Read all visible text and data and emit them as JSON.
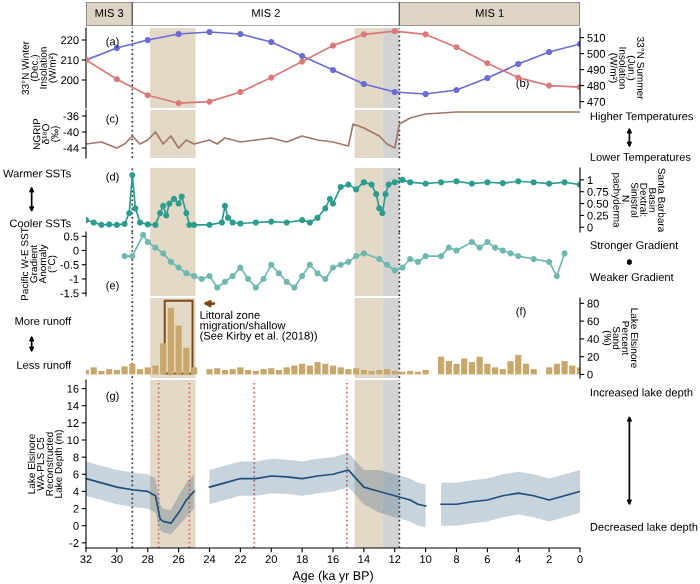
{
  "chart_data": [
    {
      "type": "other",
      "annotations": [
        "MIS 3",
        "MIS 2",
        "MIS 1"
      ],
      "colors": [
        "#ddd4c6",
        "#ffffff",
        "#ddd4c6"
      ]
    },
    {
      "type": "line",
      "ylabel": "33°N Winter\n(Dec.)\nInsolation\n(W/m²)",
      "y2label": "33°N Summer\n(Jun.)\nInsolation\n(W/m²)",
      "xlim": [
        32,
        0
      ],
      "ylim": [
        186,
        226
      ],
      "yticks": [
        200,
        210,
        220
      ],
      "y2lim": [
        466,
        516
      ],
      "y2ticks": [
        470,
        480,
        490,
        500,
        510
      ],
      "tick_labels": "y",
      "marker": "circle",
      "series": [
        {
          "color": "#6b6bd6",
          "x": [
            32,
            30,
            28,
            26,
            24,
            22,
            20,
            18,
            16,
            14,
            12,
            10,
            8,
            6,
            4,
            2,
            0
          ],
          "values": [
            210,
            216,
            220,
            223,
            224,
            223,
            219,
            212,
            205,
            198,
            194,
            193,
            195,
            201,
            208,
            214,
            218
          ]
        },
        {
          "color": "#d97a7a",
          "axis": "y2",
          "x": [
            32,
            30,
            28,
            26,
            24,
            22,
            20,
            18,
            16,
            14,
            12,
            10,
            8,
            6,
            4,
            2,
            0
          ],
          "values": [
            496,
            484,
            474,
            469,
            470,
            476,
            485,
            495,
            505,
            512,
            514,
            512,
            504,
            494,
            485,
            480,
            479
          ]
        }
      ],
      "annotations": [
        "(a)",
        "(b)"
      ],
      "bands": [
        {
          "axis": "x",
          "from": 27.85,
          "to": 24.9,
          "color": "#e3d9c6"
        },
        {
          "axis": "x",
          "from": 14.6,
          "to": 12.8,
          "color": "#e3d9c6"
        },
        {
          "axis": "x",
          "from": 12.8,
          "to": 11.7,
          "color": "#d3d3d3"
        }
      ],
      "ref_lines": [
        {
          "axis": "x",
          "value": 29,
          "color": "#333333",
          "line_style": "dotted"
        },
        {
          "axis": "x",
          "value": 11.7,
          "color": "#333333",
          "line_style": "dotted"
        }
      ]
    },
    {
      "type": "line",
      "ylabel": "NGRIP\nδ¹⁸O\n(‰)",
      "xlim": [
        32,
        0
      ],
      "ylim": [
        -46.5,
        -34.5
      ],
      "yticks": [
        -44,
        -40,
        -36
      ],
      "tick_labels": "y",
      "series": [
        {
          "color": "#a0786a",
          "x": [
            32,
            31,
            30,
            29.5,
            29,
            28.5,
            28,
            27.5,
            27,
            26.5,
            26,
            25.5,
            25,
            24,
            23.5,
            23,
            22,
            21,
            20,
            19,
            18,
            17,
            16,
            15,
            14.7,
            14,
            13.5,
            13,
            12.5,
            12,
            11.7,
            11,
            10,
            8,
            6,
            4,
            2,
            0
          ],
          "values": [
            -43,
            -42.5,
            -44,
            -43,
            -41,
            -43,
            -42,
            -40,
            -43,
            -41,
            -44,
            -42,
            -43,
            -42,
            -43,
            -41.5,
            -42.5,
            -42,
            -41.5,
            -42.5,
            -41,
            -42,
            -42.5,
            -43.5,
            -38,
            -39,
            -40,
            -41,
            -43,
            -44,
            -38,
            -36.5,
            -35.5,
            -35,
            -35,
            -35,
            -35,
            -35
          ]
        }
      ],
      "annotations": [
        "(c)",
        "Higher Temperatures",
        "Lower Temperatures"
      ],
      "bands": [
        {
          "axis": "x",
          "from": 27.85,
          "to": 24.9,
          "color": "#e3d9c6"
        },
        {
          "axis": "x",
          "from": 14.6,
          "to": 12.8,
          "color": "#e3d9c6"
        },
        {
          "axis": "x",
          "from": 12.8,
          "to": 11.7,
          "color": "#d3d3d3"
        }
      ],
      "ref_lines": [
        {
          "axis": "x",
          "value": 29,
          "color": "#333333",
          "line_style": "dotted"
        },
        {
          "axis": "x",
          "value": 11.7,
          "color": "#333333",
          "line_style": "dotted"
        }
      ]
    },
    {
      "type": "line",
      "y2label": "Santa Barbara\nBasin\nDextral:\nSinistral\nN.\npachyderma",
      "xlim": [
        32,
        0
      ],
      "y2lim": [
        -0.1,
        1.25
      ],
      "y2ticks": [
        0,
        0.25,
        {
          "value": 0.5,
          "label": "0.50"
        },
        0.75,
        1
      ],
      "tick_labels": "y",
      "marker": "circle",
      "series": [
        {
          "color": "#2a9d8f",
          "axis": "y2",
          "x": [
            32,
            31.5,
            31,
            30.5,
            30,
            29.5,
            29.2,
            29,
            28.8,
            28.5,
            28,
            27.5,
            27.2,
            27,
            26.8,
            26.6,
            26.3,
            26,
            25.8,
            25.5,
            25.3,
            25,
            24,
            23.2,
            23,
            22.8,
            22.5,
            22,
            21,
            20,
            19,
            18,
            17.5,
            17,
            16.5,
            16.2,
            16,
            15.5,
            15,
            14.5,
            14,
            13.5,
            13.2,
            13,
            12.8,
            12.6,
            12.4,
            12,
            11.5,
            11,
            10,
            9,
            8,
            7,
            6,
            5,
            4,
            3,
            2,
            1,
            0
          ],
          "values": [
            0.15,
            0.1,
            0.05,
            0.06,
            0.05,
            0.07,
            0.3,
            1.1,
            0.4,
            0.1,
            0.06,
            0.05,
            0.3,
            0.45,
            0.25,
            0.5,
            0.6,
            0.5,
            0.65,
            0.3,
            0.05,
            0.05,
            0.05,
            0.1,
            0.45,
            0.2,
            0.1,
            0.08,
            0.1,
            0.12,
            0.1,
            0.15,
            0.1,
            0.2,
            0.4,
            0.6,
            0.5,
            0.85,
            0.9,
            0.8,
            0.95,
            0.9,
            0.7,
            0.4,
            0.3,
            0.7,
            0.9,
            0.95,
            1.0,
            0.95,
            0.92,
            0.95,
            0.97,
            0.92,
            0.95,
            0.93,
            0.97,
            0.95,
            0.92,
            0.95,
            0.9
          ]
        }
      ],
      "annotations": [
        "(d)",
        "Warmer SSTs",
        "Cooler SSTs"
      ],
      "bands": [
        {
          "axis": "x",
          "from": 27.85,
          "to": 24.9,
          "color": "#e3d9c6"
        },
        {
          "axis": "x",
          "from": 14.6,
          "to": 12.8,
          "color": "#e3d9c6"
        },
        {
          "axis": "x",
          "from": 12.8,
          "to": 11.7,
          "color": "#d3d3d3"
        }
      ],
      "ref_lines": [
        {
          "axis": "x",
          "value": 29,
          "color": "#333333",
          "line_style": "dotted"
        },
        {
          "axis": "x",
          "value": 11.7,
          "color": "#333333",
          "line_style": "dotted"
        }
      ]
    },
    {
      "type": "line",
      "ylabel": "Pacific W-E SST\nGradient\nAnomaly\n(°C)",
      "xlim": [
        32,
        0
      ],
      "ylim": [
        -1.6,
        0.65
      ],
      "yticks": [
        -1.5,
        -1,
        -0.5,
        0,
        0.5
      ],
      "tick_labels": "y",
      "marker": "circle",
      "series": [
        {
          "color": "#6fb8b0",
          "x": [
            29.5,
            29,
            28.3,
            28,
            27.5,
            27,
            26.5,
            26,
            25.5,
            25,
            24.5,
            24,
            23.5,
            23,
            22.5,
            22,
            21.5,
            21,
            20.5,
            20,
            19.5,
            19,
            18.5,
            18,
            17.5,
            17,
            16.5,
            16,
            15.5,
            15,
            14.5,
            14,
            13,
            12.5,
            12,
            11.5,
            11,
            10.5,
            10,
            9,
            8.5,
            8,
            7,
            6.5,
            6,
            5.5,
            5,
            4.5,
            4,
            3,
            2,
            1.5,
            1
          ],
          "values": [
            -0.2,
            -0.2,
            0.55,
            0.3,
            0.1,
            -0.1,
            -0.4,
            -0.6,
            -0.8,
            -0.9,
            -1.0,
            -0.9,
            -1.3,
            -1.1,
            -0.9,
            -0.6,
            -1.0,
            -1.3,
            -1.0,
            -0.5,
            -0.8,
            -1.1,
            -1.3,
            -0.9,
            -0.5,
            -0.8,
            -1.0,
            -0.6,
            -0.5,
            -0.4,
            -0.2,
            -0.1,
            -0.3,
            -0.5,
            -0.7,
            -0.6,
            -0.3,
            -0.4,
            -0.2,
            -0.2,
            0.1,
            0.0,
            0.3,
            0.1,
            0.3,
            0.1,
            0.0,
            -0.1,
            -0.2,
            -0.3,
            -0.4,
            -0.9,
            -0.1
          ]
        }
      ],
      "annotations": [
        "(e)",
        "Stronger Gradient",
        "Weaker Gradient"
      ],
      "bands": [
        {
          "axis": "x",
          "from": 27.85,
          "to": 24.9,
          "color": "#e3d9c6"
        },
        {
          "axis": "x",
          "from": 14.6,
          "to": 12.8,
          "color": "#e3d9c6"
        },
        {
          "axis": "x",
          "from": 12.8,
          "to": 11.7,
          "color": "#d3d3d3"
        }
      ],
      "ref_lines": [
        {
          "axis": "x",
          "value": 29,
          "color": "#333333",
          "line_style": "dotted"
        },
        {
          "axis": "x",
          "value": 11.7,
          "color": "#333333",
          "line_style": "dotted"
        }
      ]
    },
    {
      "type": "bar",
      "y2label": "Lake Elsinore\nPercent\nSand\n(%)",
      "xlim": [
        32,
        0
      ],
      "y2lim": [
        -4,
        86
      ],
      "y2ticks": [
        0,
        20,
        40,
        60,
        80
      ],
      "tick_labels": "y",
      "series": [
        {
          "color": "#c8a86a",
          "axis": "y2",
          "x": [
            32,
            31.5,
            31,
            30.5,
            30,
            29.5,
            29,
            28.5,
            28,
            27.5,
            27,
            26.5,
            26,
            25.5,
            25,
            24.5,
            24,
            23.5,
            23,
            22.5,
            22,
            21.5,
            21,
            20.5,
            20,
            19.5,
            19,
            18.5,
            18,
            17.5,
            17,
            16.5,
            16,
            15.5,
            15,
            14.5,
            14,
            13.5,
            13,
            12.5,
            12,
            11.5,
            11,
            10.5,
            10,
            9.5,
            9,
            8.5,
            8,
            7.5,
            7,
            6.5,
            6,
            5.5,
            5,
            4.5,
            4,
            3.5,
            3,
            2.5,
            2,
            1.5,
            1,
            0.5,
            0
          ],
          "values": [
            5,
            8,
            4,
            6,
            5,
            9,
            12,
            6,
            8,
            10,
            35,
            75,
            55,
            30,
            8,
            null,
            6,
            7,
            5,
            6,
            8,
            5,
            4,
            6,
            7,
            5,
            8,
            10,
            12,
            10,
            14,
            12,
            10,
            8,
            6,
            7,
            5,
            4,
            5,
            6,
            4,
            3,
            4,
            3,
            5,
            null,
            20,
            15,
            12,
            18,
            14,
            20,
            12,
            8,
            6,
            15,
            22,
            12,
            6,
            null,
            8,
            12,
            15,
            10,
            8
          ]
        }
      ],
      "annotations": [
        "(f)",
        "More runoff",
        "Less runoff",
        "Littoral zone\nmigration/shallow\n(See Kirby et al. (2018))"
      ],
      "bands": [
        {
          "axis": "x",
          "from": 27.85,
          "to": 24.9,
          "color": "#e3d9c6"
        },
        {
          "axis": "x",
          "from": 14.6,
          "to": 12.8,
          "color": "#e3d9c6"
        },
        {
          "axis": "x",
          "from": 12.8,
          "to": 11.7,
          "color": "#d3d3d3"
        }
      ],
      "ref_lines": [
        {
          "axis": "x",
          "value": 29,
          "color": "#333333",
          "line_style": "dotted"
        },
        {
          "axis": "x",
          "value": 11.7,
          "color": "#333333",
          "line_style": "dotted"
        }
      ]
    },
    {
      "type": "line",
      "ylabel": "Lake Elsinore\nWA-PLS C5\nReconstructed\nLake Depth (m)",
      "xlabel": "Age (ka yr BP)",
      "xlim": [
        32,
        0
      ],
      "xticks": [
        32,
        30,
        28,
        26,
        24,
        22,
        20,
        18,
        16,
        14,
        12,
        10,
        8,
        6,
        4,
        2,
        0
      ],
      "ylim": [
        -2.6,
        17
      ],
      "yticks": [
        -2,
        0,
        2,
        4,
        6,
        8,
        10,
        12,
        14,
        16
      ],
      "series": [
        {
          "color": "#1f4e79",
          "x": [
            32,
            31,
            30,
            29,
            28,
            27.5,
            27.2,
            27,
            26.5,
            26,
            25.5,
            25,
            24.5,
            24,
            23,
            22,
            21,
            20,
            19,
            18,
            17,
            16,
            15,
            14.5,
            14,
            13,
            12,
            11,
            10.5,
            10,
            9.5,
            9,
            8,
            7,
            6,
            5,
            4,
            3,
            2,
            1,
            0
          ],
          "values": [
            5.5,
            5,
            4.5,
            4.2,
            4,
            3.5,
            0.8,
            0.5,
            0.3,
            1.5,
            3,
            4,
            null,
            4.5,
            5,
            5.5,
            5.5,
            5.8,
            5.7,
            5.5,
            5.8,
            6,
            6.5,
            5.5,
            4.5,
            4,
            3.5,
            3,
            2.5,
            2.3,
            null,
            2.5,
            2.5,
            2.8,
            3,
            3.5,
            3.8,
            3.5,
            3,
            3.5,
            4
          ],
          "lower": [
            3.5,
            3,
            2.5,
            2.2,
            2,
            1.5,
            -0.5,
            -0.8,
            -1,
            0,
            1,
            2,
            null,
            2.5,
            3,
            3.5,
            3.5,
            3.8,
            3.7,
            3.5,
            3.8,
            4,
            4.5,
            3.5,
            2.5,
            1.5,
            1,
            0.5,
            0,
            -0.2,
            null,
            0,
            0,
            0.3,
            0.5,
            1,
            1.3,
            1,
            0.5,
            1,
            1.5
          ],
          "upper": [
            7.5,
            7,
            6.5,
            6.2,
            6,
            5.5,
            2.5,
            2,
            1.8,
            3.5,
            5,
            6,
            null,
            6.5,
            7,
            7.5,
            7.5,
            7.8,
            7.7,
            7.5,
            7.8,
            8,
            8.5,
            7.5,
            6.5,
            6.5,
            6,
            5.5,
            5,
            4.8,
            null,
            5,
            5,
            5.3,
            5.5,
            6,
            6.3,
            6,
            5.5,
            6,
            6.5
          ]
        }
      ],
      "annotations": [
        "(g)",
        "Increased lake depth",
        "Decreased lake depth"
      ],
      "bands": [
        {
          "axis": "x",
          "from": 27.85,
          "to": 24.9,
          "color": "#e3d9c6"
        },
        {
          "axis": "x",
          "from": 14.6,
          "to": 12.8,
          "color": "#e3d9c6"
        },
        {
          "axis": "x",
          "from": 12.8,
          "to": 11.7,
          "color": "#d3d3d3"
        }
      ],
      "ref_lines": [
        {
          "axis": "x",
          "value": 29,
          "color": "#333333",
          "line_style": "dotted"
        },
        {
          "axis": "x",
          "value": 11.7,
          "color": "#333333",
          "line_style": "dotted"
        },
        {
          "axis": "x",
          "value": 27.3,
          "color": "#e06060",
          "line_style": "dotted"
        },
        {
          "axis": "x",
          "value": 25.3,
          "color": "#e06060",
          "line_style": "dotted"
        },
        {
          "axis": "x",
          "value": 21.1,
          "color": "#e06060",
          "line_style": "dotted"
        },
        {
          "axis": "x",
          "value": 15.1,
          "color": "#e06060",
          "line_style": "dotted"
        }
      ]
    }
  ]
}
